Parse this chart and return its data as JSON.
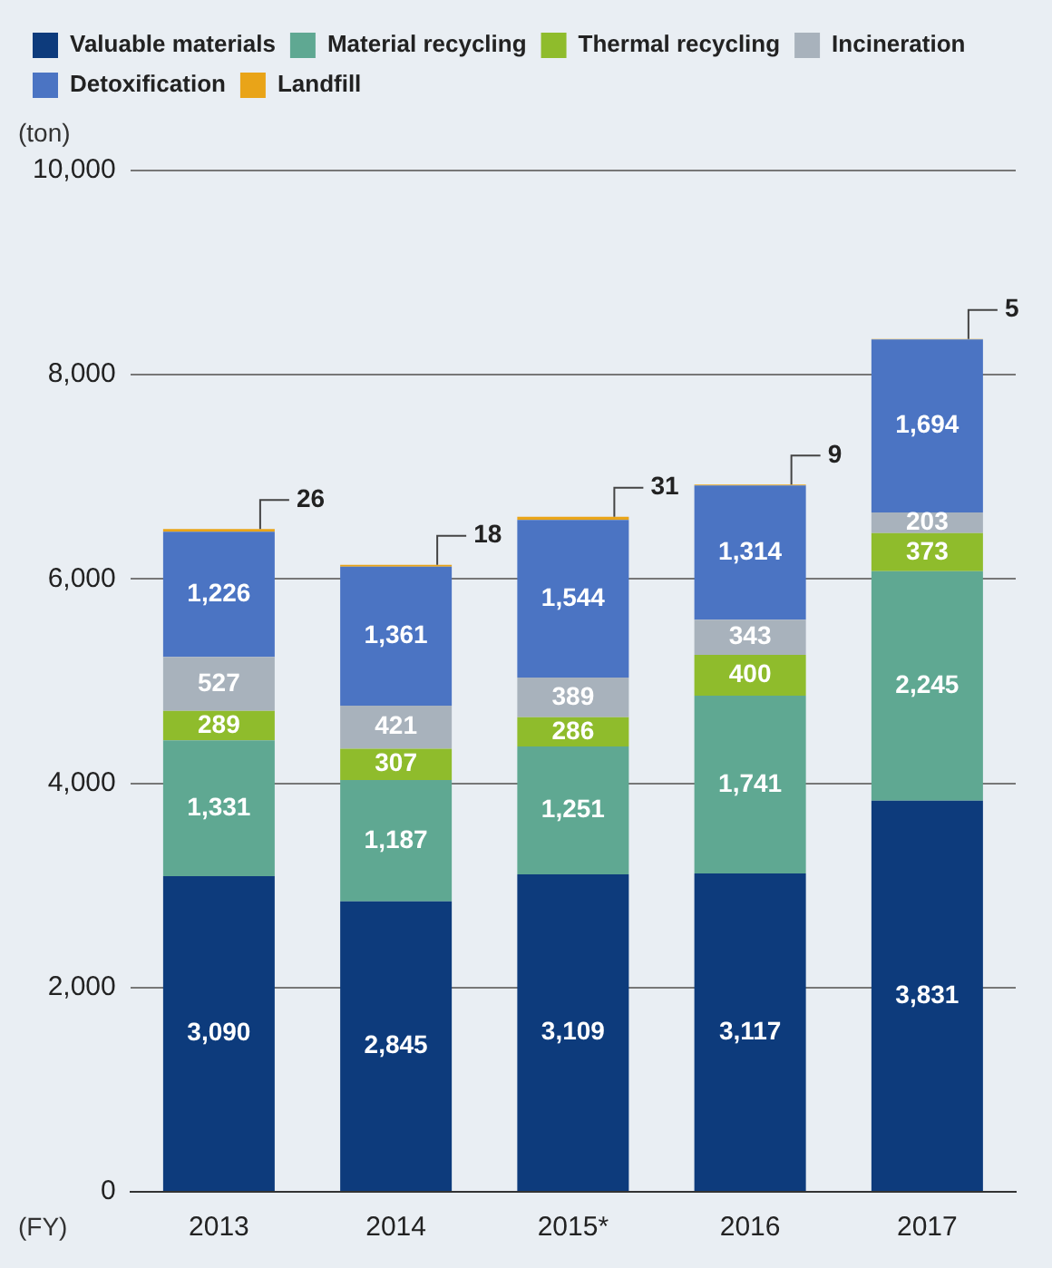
{
  "chart_data": {
    "type": "bar",
    "stacked": true,
    "ylabel": "(ton)",
    "xlabel": "(FY)",
    "categories": [
      "2013",
      "2014",
      "2015*",
      "2016",
      "2017"
    ],
    "series": [
      {
        "name": "Valuable materials",
        "color": "#0d3b7c",
        "values": [
          3090,
          2845,
          3109,
          3117,
          3831
        ],
        "value_labels": [
          "3,090",
          "2,845",
          "3,109",
          "3,117",
          "3,831"
        ]
      },
      {
        "name": "Material recycling",
        "color": "#5fa892",
        "values": [
          1331,
          1187,
          1251,
          1741,
          2245
        ],
        "value_labels": [
          "1,331",
          "1,187",
          "1,251",
          "1,741",
          "2,245"
        ]
      },
      {
        "name": "Thermal recycling",
        "color": "#8fbc2c",
        "values": [
          289,
          307,
          286,
          400,
          373
        ],
        "value_labels": [
          "289",
          "307",
          "286",
          "400",
          "373"
        ]
      },
      {
        "name": "Incineration",
        "color": "#a8b2bc",
        "values": [
          527,
          421,
          389,
          343,
          203
        ],
        "value_labels": [
          "527",
          "421",
          "389",
          "343",
          "203"
        ]
      },
      {
        "name": "Detoxification",
        "color": "#4b74c3",
        "values": [
          1226,
          1361,
          1544,
          1314,
          1694
        ],
        "value_labels": [
          "1,226",
          "1,361",
          "1,544",
          "1,314",
          "1,694"
        ]
      },
      {
        "name": "Landfill",
        "color": "#e9a418",
        "values": [
          26,
          18,
          31,
          9,
          5
        ],
        "value_labels": [
          "26",
          "18",
          "31",
          "9",
          "5"
        ]
      }
    ],
    "ylim": [
      0,
      10000
    ],
    "yticks": [
      0,
      {
        "value": 2000,
        "label": "2,000"
      },
      {
        "value": 4000,
        "label": "4,000"
      },
      {
        "value": 6000,
        "label": "6,000"
      },
      {
        "value": 8000,
        "label": "8,000"
      },
      {
        "value": 10000,
        "label": "10,000"
      }
    ],
    "grid": "y",
    "legend": "top left"
  }
}
